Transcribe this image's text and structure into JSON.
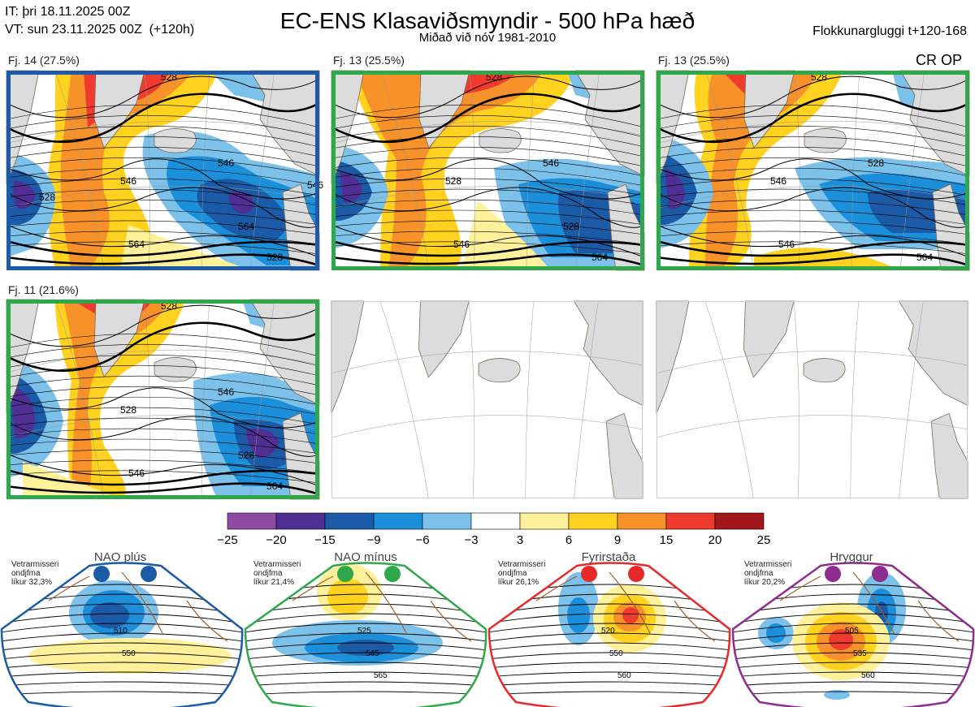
{
  "header": {
    "it_line": "IT: þri 18.11.2025 00Z",
    "vt_line": "VT: sun 23.11.2025 00Z  (+120h)",
    "title": "EC-ENS Klasaviðsmyndir - 500 hPa hæð",
    "subtitle": "Miðað við nóv 1981-2010",
    "window": "Flokkunargluggi t+120-168",
    "cr_op": "CR OP"
  },
  "panels": [
    {
      "label": "Fj. 14 (27.5%)",
      "frame_color": "#1f5aa8",
      "contours": [
        "528",
        "546",
        "564",
        "528",
        "546",
        "564",
        "528",
        "546"
      ]
    },
    {
      "label": "Fj. 13 (25.5%)",
      "frame_color": "#2ea84a",
      "contours": [
        "528",
        "528",
        "546",
        "564",
        "546",
        "528"
      ]
    },
    {
      "label": "Fj. 13 (25.5%)",
      "frame_color": "#2ea84a",
      "contours": [
        "528",
        "546",
        "546",
        "564",
        "528"
      ]
    },
    {
      "label": "Fj. 11 (21.6%)",
      "frame_color": "#2ea84a",
      "contours": [
        "528",
        "528",
        "546",
        "564",
        "546",
        "528"
      ]
    },
    {
      "label": "",
      "frame_color": "#cccccc",
      "contours": []
    },
    {
      "label": "",
      "frame_color": "#cccccc",
      "contours": []
    }
  ],
  "colorbar": {
    "ticks": [
      "−25",
      "−20",
      "−15",
      "−9",
      "−6",
      "−3",
      "3",
      "6",
      "9",
      "15",
      "20",
      "25"
    ],
    "colors": [
      "#8d4ba3",
      "#4f2f93",
      "#1a5aa6",
      "#1b8fd9",
      "#7cc1ea",
      "#ffffff",
      "#fff19a",
      "#ffd21f",
      "#f7912a",
      "#ee3b2e",
      "#a3161b"
    ]
  },
  "regimes": [
    {
      "title": "NAO plús",
      "note": [
        "Vetrarmisseri",
        "ondjfma",
        "líkur 32,3%"
      ],
      "color": "#1a5aa6",
      "contours": [
        "510",
        "550"
      ]
    },
    {
      "title": "NAO mínus",
      "note": [
        "Vetrarmisseri",
        "ondjfma",
        "líkur 21,4%"
      ],
      "color": "#2ea84a",
      "contours": [
        "525",
        "545",
        "565"
      ]
    },
    {
      "title": "Fyrirstaða",
      "note": [
        "Vetrarmisseri",
        "ondjfma",
        "líkur 26,1%"
      ],
      "color": "#e8292a",
      "contours": [
        "520",
        "550",
        "560"
      ]
    },
    {
      "title": "Hryggur",
      "note": [
        "Vetrarmisseri",
        "ondjfma",
        "líkur 20,2%"
      ],
      "color": "#8e2c8f",
      "contours": [
        "505",
        "535",
        "560"
      ]
    }
  ]
}
